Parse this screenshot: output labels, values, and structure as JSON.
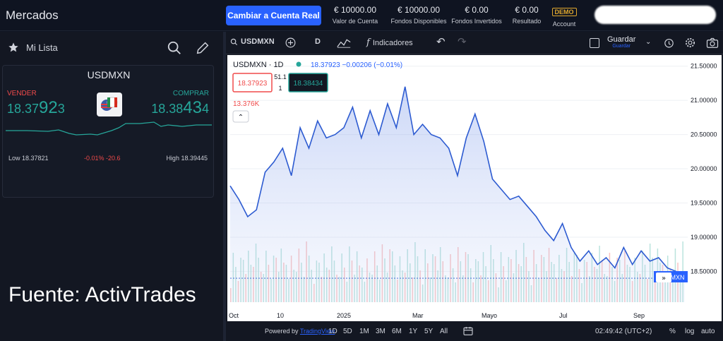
{
  "header": {
    "title": "Mercados",
    "cta_label": "Cambiar a Cuenta Real",
    "stats": [
      {
        "value": "€ 10000.00",
        "label": "Valor de Cuenta"
      },
      {
        "value": "€ 10000.00",
        "label": "Fondos Disponibles"
      },
      {
        "value": "€ 0.00",
        "label": "Fondos Invertidos"
      },
      {
        "value": "€ 0.00",
        "label": "Resultado"
      }
    ],
    "account_badge": "DEMO",
    "account_label": "Account"
  },
  "watchlist": {
    "title": "Mi Lista",
    "card": {
      "symbol": "USDMXN",
      "sell_label": "VENDER",
      "buy_label": "COMPRAR",
      "sell_small": "18.37",
      "sell_big": "92",
      "sell_tail": "3",
      "buy_small": "18.38",
      "buy_big": "43",
      "buy_tail": "4",
      "low": "Low 18.37821",
      "change": "-0.01%  -20.6",
      "high": "High 18.39445"
    }
  },
  "source_note": "Fuente: ActivTrades",
  "chart_toolbar": {
    "symbol": "USDMXN",
    "interval": "D",
    "indicators_label": "Indicadores",
    "save_label": "Guardar",
    "save_sub": "Guardar"
  },
  "chart_legend": {
    "title": "USDMXN · 1D",
    "values": "18.37923  −0.00206 (−0.01%)",
    "sell_box": "18.37923",
    "spread_top": "51.1",
    "spread_bottom": "1",
    "buy_box": "18.38434",
    "volume": "13.376K"
  },
  "chart_data": {
    "type": "area",
    "x_ticks": [
      "Oct",
      "10",
      "2025",
      "Mar",
      "Mayo",
      "Jul",
      "Sep"
    ],
    "y_ticks": [
      "21.50000",
      "21.00000",
      "20.50000",
      "20.00000",
      "19.50000",
      "19.00000",
      "18.50000"
    ],
    "ylim": [
      18.05,
      21.6
    ],
    "last_price_label": "USDMXN",
    "values": [
      19.75,
      19.55,
      19.3,
      19.4,
      19.95,
      20.1,
      20.3,
      19.9,
      20.6,
      20.3,
      20.7,
      20.45,
      20.5,
      20.6,
      20.9,
      20.45,
      20.85,
      20.5,
      20.95,
      20.6,
      21.2,
      20.5,
      20.65,
      20.5,
      20.45,
      20.3,
      19.9,
      20.45,
      20.8,
      20.4,
      19.85,
      19.7,
      19.55,
      19.6,
      19.45,
      19.3,
      19.1,
      18.95,
      19.2,
      18.85,
      18.65,
      18.8,
      18.6,
      18.7,
      18.55,
      18.85,
      18.6,
      18.8,
      18.65,
      18.7,
      18.55,
      18.5,
      18.4
    ],
    "grid": true
  },
  "time_axis_bar": {
    "powered_prefix": "Powered by",
    "powered_link": "TradingView",
    "ranges": [
      "1D",
      "5D",
      "1M",
      "3M",
      "6M",
      "1Y",
      "5Y",
      "All"
    ],
    "clock": "02:49:42 (UTC+2)",
    "pct_label": "%",
    "log_label": "log",
    "auto_label": "auto"
  }
}
